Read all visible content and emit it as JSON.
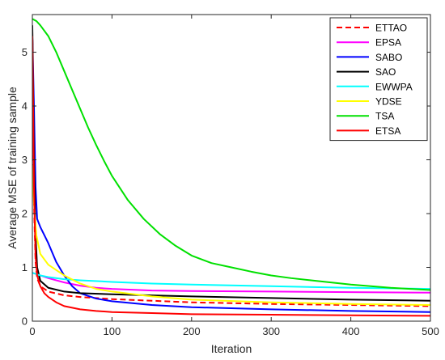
{
  "chart_data": {
    "type": "line",
    "title": "",
    "xlabel": "Iteration",
    "ylabel": "Average MSE of training sample",
    "xlim": [
      0,
      500
    ],
    "ylim": [
      0,
      5.7
    ],
    "xticks": [
      0,
      100,
      200,
      300,
      400,
      500
    ],
    "yticks": [
      0,
      1,
      2,
      3,
      4,
      5
    ],
    "grid": false,
    "legend_position": "top-right",
    "series": [
      {
        "name": "ETTAO",
        "color": "#ff0000",
        "dash": true,
        "points": [
          [
            0,
            5.4
          ],
          [
            2,
            2.2
          ],
          [
            4,
            1.1
          ],
          [
            6,
            0.8
          ],
          [
            10,
            0.65
          ],
          [
            20,
            0.55
          ],
          [
            40,
            0.48
          ],
          [
            60,
            0.45
          ],
          [
            100,
            0.41
          ],
          [
            150,
            0.38
          ],
          [
            200,
            0.35
          ],
          [
            300,
            0.32
          ],
          [
            400,
            0.3
          ],
          [
            500,
            0.28
          ]
        ]
      },
      {
        "name": "EPSA",
        "color": "#ff00ff",
        "dash": false,
        "points": [
          [
            0,
            0.9
          ],
          [
            10,
            0.85
          ],
          [
            20,
            0.8
          ],
          [
            40,
            0.72
          ],
          [
            60,
            0.66
          ],
          [
            80,
            0.62
          ],
          [
            100,
            0.6
          ],
          [
            150,
            0.57
          ],
          [
            200,
            0.56
          ],
          [
            300,
            0.55
          ],
          [
            400,
            0.54
          ],
          [
            500,
            0.53
          ]
        ]
      },
      {
        "name": "SABO",
        "color": "#0000ff",
        "dash": false,
        "points": [
          [
            0,
            5.3
          ],
          [
            2,
            4.0
          ],
          [
            4,
            2.5
          ],
          [
            6,
            1.9
          ],
          [
            10,
            1.75
          ],
          [
            15,
            1.6
          ],
          [
            20,
            1.45
          ],
          [
            30,
            1.1
          ],
          [
            40,
            0.85
          ],
          [
            50,
            0.65
          ],
          [
            60,
            0.52
          ],
          [
            80,
            0.42
          ],
          [
            100,
            0.37
          ],
          [
            150,
            0.3
          ],
          [
            200,
            0.26
          ],
          [
            300,
            0.22
          ],
          [
            400,
            0.19
          ],
          [
            500,
            0.17
          ]
        ]
      },
      {
        "name": "SAO",
        "color": "#000000",
        "dash": false,
        "points": [
          [
            0,
            5.5
          ],
          [
            2,
            3.0
          ],
          [
            4,
            1.6
          ],
          [
            6,
            1.0
          ],
          [
            10,
            0.75
          ],
          [
            20,
            0.62
          ],
          [
            40,
            0.55
          ],
          [
            60,
            0.52
          ],
          [
            100,
            0.5
          ],
          [
            150,
            0.48
          ],
          [
            200,
            0.46
          ],
          [
            300,
            0.43
          ],
          [
            400,
            0.4
          ],
          [
            500,
            0.38
          ]
        ]
      },
      {
        "name": "EWWPA",
        "color": "#00ffff",
        "dash": false,
        "points": [
          [
            0,
            0.9
          ],
          [
            10,
            0.85
          ],
          [
            20,
            0.82
          ],
          [
            40,
            0.78
          ],
          [
            60,
            0.76
          ],
          [
            100,
            0.73
          ],
          [
            150,
            0.7
          ],
          [
            200,
            0.68
          ],
          [
            300,
            0.65
          ],
          [
            400,
            0.62
          ],
          [
            500,
            0.6
          ]
        ]
      },
      {
        "name": "YDSE",
        "color": "#ffff00",
        "dash": false,
        "points": [
          [
            0,
            2.9
          ],
          [
            2,
            2.2
          ],
          [
            5,
            1.6
          ],
          [
            10,
            1.25
          ],
          [
            20,
            1.05
          ],
          [
            30,
            0.95
          ],
          [
            40,
            0.85
          ],
          [
            60,
            0.7
          ],
          [
            80,
            0.6
          ],
          [
            100,
            0.55
          ],
          [
            150,
            0.46
          ],
          [
            200,
            0.4
          ],
          [
            300,
            0.35
          ],
          [
            400,
            0.32
          ],
          [
            500,
            0.3
          ]
        ]
      },
      {
        "name": "TSA",
        "color": "#00e000",
        "dash": false,
        "points": [
          [
            0,
            5.62
          ],
          [
            5,
            5.58
          ],
          [
            10,
            5.5
          ],
          [
            20,
            5.3
          ],
          [
            30,
            5.0
          ],
          [
            40,
            4.65
          ],
          [
            50,
            4.3
          ],
          [
            60,
            3.95
          ],
          [
            70,
            3.6
          ],
          [
            80,
            3.28
          ],
          [
            90,
            2.98
          ],
          [
            100,
            2.7
          ],
          [
            120,
            2.25
          ],
          [
            140,
            1.9
          ],
          [
            160,
            1.62
          ],
          [
            180,
            1.4
          ],
          [
            200,
            1.22
          ],
          [
            225,
            1.08
          ],
          [
            250,
            1.0
          ],
          [
            275,
            0.92
          ],
          [
            300,
            0.85
          ],
          [
            325,
            0.8
          ],
          [
            350,
            0.76
          ],
          [
            375,
            0.72
          ],
          [
            400,
            0.68
          ],
          [
            425,
            0.65
          ],
          [
            450,
            0.62
          ],
          [
            475,
            0.6
          ],
          [
            500,
            0.58
          ]
        ]
      },
      {
        "name": "ETSA",
        "color": "#ff0000",
        "dash": false,
        "points": [
          [
            0,
            5.3
          ],
          [
            2,
            2.5
          ],
          [
            4,
            1.2
          ],
          [
            6,
            0.85
          ],
          [
            10,
            0.65
          ],
          [
            15,
            0.52
          ],
          [
            20,
            0.45
          ],
          [
            30,
            0.35
          ],
          [
            40,
            0.28
          ],
          [
            60,
            0.22
          ],
          [
            80,
            0.19
          ],
          [
            100,
            0.17
          ],
          [
            150,
            0.15
          ],
          [
            200,
            0.13
          ],
          [
            300,
            0.12
          ],
          [
            400,
            0.11
          ],
          [
            500,
            0.1
          ]
        ]
      }
    ]
  }
}
